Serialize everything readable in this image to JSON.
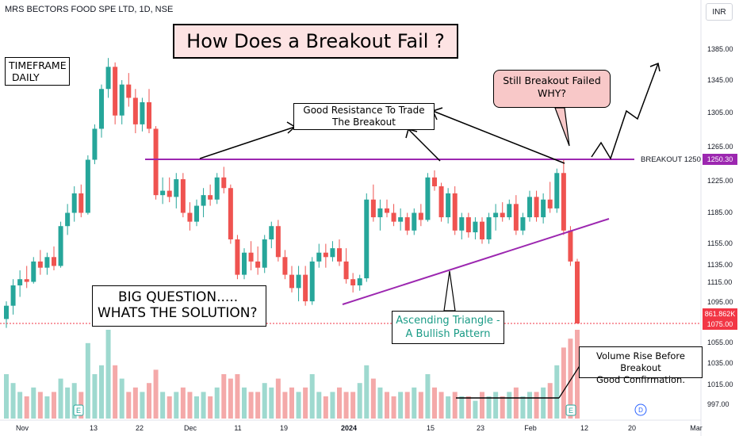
{
  "header": {
    "symbol": "MRS BECTORS FOOD SPE LTD, 1D, NSE",
    "currency": "INR"
  },
  "annotations": {
    "title": "How Does a Breakout Fail ?",
    "timeframe_line1": "TIMEFRAME",
    "timeframe_line2": "DAILY",
    "question_line1": "BIG QUESTION.....",
    "question_line2": "WHATS THE SOLUTION?",
    "resistance_line1": "Good Resistance To Trade",
    "resistance_line2": "The Breakout",
    "still_line1": "Still Breakout Failed",
    "still_line2": "WHY?",
    "ascending_line1": "Ascending Triangle -",
    "ascending_line2": "A Bullish Pattern",
    "volume_line1": "Volume Rise Before Breakout",
    "volume_line2": "Good Confirmation.",
    "breakout_label": "BREAKOUT 1250",
    "earnings_marker": "E",
    "dividend_marker": "D"
  },
  "price_tags": {
    "breakout_value": "1250.30",
    "volume_value": "861.862K",
    "last_value": "1075.00"
  },
  "colors": {
    "up": "#26a69a",
    "down": "#ef5350",
    "up_volume": "#9ed9cf",
    "down_volume": "#f4a9a9",
    "breakout_line": "#9c27b0",
    "last_price": "#f23645"
  },
  "chart_data": {
    "type": "candlestick",
    "y_axis": {
      "ticks": [
        "1385.00",
        "1345.00",
        "1305.00",
        "1265.00",
        "1225.00",
        "1185.00",
        "1155.00",
        "1135.00",
        "1115.00",
        "1095.00",
        "1055.00",
        "1035.00",
        "1015.00",
        "997.00"
      ],
      "range": [
        990,
        1400
      ]
    },
    "x_axis": {
      "ticks": [
        "Nov",
        "13",
        "22",
        "Dec",
        "11",
        "19",
        "2024",
        "15",
        "23",
        "Feb",
        "12",
        "20",
        "Mar"
      ]
    },
    "breakout_level": 1250,
    "candles": [
      {
        "o": 1080,
        "h": 1100,
        "l": 1070,
        "c": 1095,
        "v": 0.5
      },
      {
        "o": 1095,
        "h": 1125,
        "l": 1085,
        "c": 1118,
        "v": 0.4
      },
      {
        "o": 1118,
        "h": 1135,
        "l": 1105,
        "c": 1125,
        "v": 0.3
      },
      {
        "o": 1125,
        "h": 1140,
        "l": 1115,
        "c": 1122,
        "v": 0.25
      },
      {
        "o": 1122,
        "h": 1150,
        "l": 1120,
        "c": 1145,
        "v": 0.35
      },
      {
        "o": 1145,
        "h": 1158,
        "l": 1130,
        "c": 1138,
        "v": 0.3
      },
      {
        "o": 1138,
        "h": 1155,
        "l": 1130,
        "c": 1150,
        "v": 0.25
      },
      {
        "o": 1150,
        "h": 1162,
        "l": 1135,
        "c": 1140,
        "v": 0.3
      },
      {
        "o": 1140,
        "h": 1190,
        "l": 1138,
        "c": 1185,
        "v": 0.45
      },
      {
        "o": 1185,
        "h": 1210,
        "l": 1175,
        "c": 1200,
        "v": 0.35
      },
      {
        "o": 1200,
        "h": 1230,
        "l": 1190,
        "c": 1222,
        "v": 0.4
      },
      {
        "o": 1222,
        "h": 1232,
        "l": 1195,
        "c": 1200,
        "v": 0.3
      },
      {
        "o": 1200,
        "h": 1265,
        "l": 1198,
        "c": 1260,
        "v": 0.85
      },
      {
        "o": 1260,
        "h": 1300,
        "l": 1255,
        "c": 1295,
        "v": 0.5
      },
      {
        "o": 1295,
        "h": 1345,
        "l": 1285,
        "c": 1340,
        "v": 0.6
      },
      {
        "o": 1340,
        "h": 1375,
        "l": 1330,
        "c": 1365,
        "v": 1.0
      },
      {
        "o": 1365,
        "h": 1370,
        "l": 1300,
        "c": 1310,
        "v": 0.6
      },
      {
        "o": 1310,
        "h": 1350,
        "l": 1300,
        "c": 1345,
        "v": 0.45
      },
      {
        "o": 1345,
        "h": 1358,
        "l": 1320,
        "c": 1330,
        "v": 0.3
      },
      {
        "o": 1330,
        "h": 1340,
        "l": 1290,
        "c": 1300,
        "v": 0.35
      },
      {
        "o": 1300,
        "h": 1330,
        "l": 1292,
        "c": 1325,
        "v": 0.3
      },
      {
        "o": 1325,
        "h": 1340,
        "l": 1290,
        "c": 1295,
        "v": 0.4
      },
      {
        "o": 1295,
        "h": 1298,
        "l": 1215,
        "c": 1220,
        "v": 0.55
      },
      {
        "o": 1220,
        "h": 1240,
        "l": 1210,
        "c": 1225,
        "v": 0.3
      },
      {
        "o": 1225,
        "h": 1240,
        "l": 1212,
        "c": 1218,
        "v": 0.25
      },
      {
        "o": 1218,
        "h": 1245,
        "l": 1205,
        "c": 1238,
        "v": 0.3
      },
      {
        "o": 1238,
        "h": 1245,
        "l": 1195,
        "c": 1200,
        "v": 0.35
      },
      {
        "o": 1200,
        "h": 1212,
        "l": 1180,
        "c": 1190,
        "v": 0.3
      },
      {
        "o": 1190,
        "h": 1215,
        "l": 1185,
        "c": 1208,
        "v": 0.25
      },
      {
        "o": 1208,
        "h": 1228,
        "l": 1195,
        "c": 1220,
        "v": 0.3
      },
      {
        "o": 1220,
        "h": 1232,
        "l": 1208,
        "c": 1215,
        "v": 0.25
      },
      {
        "o": 1215,
        "h": 1245,
        "l": 1210,
        "c": 1240,
        "v": 0.35
      },
      {
        "o": 1240,
        "h": 1252,
        "l": 1222,
        "c": 1228,
        "v": 0.5
      },
      {
        "o": 1228,
        "h": 1232,
        "l": 1165,
        "c": 1170,
        "v": 0.45
      },
      {
        "o": 1170,
        "h": 1175,
        "l": 1125,
        "c": 1130,
        "v": 0.5
      },
      {
        "o": 1130,
        "h": 1160,
        "l": 1125,
        "c": 1155,
        "v": 0.35
      },
      {
        "o": 1155,
        "h": 1168,
        "l": 1135,
        "c": 1145,
        "v": 0.3
      },
      {
        "o": 1145,
        "h": 1162,
        "l": 1130,
        "c": 1138,
        "v": 0.3
      },
      {
        "o": 1138,
        "h": 1175,
        "l": 1132,
        "c": 1170,
        "v": 0.4
      },
      {
        "o": 1170,
        "h": 1190,
        "l": 1160,
        "c": 1185,
        "v": 0.35
      },
      {
        "o": 1185,
        "h": 1192,
        "l": 1145,
        "c": 1150,
        "v": 0.45
      },
      {
        "o": 1150,
        "h": 1158,
        "l": 1125,
        "c": 1130,
        "v": 0.3
      },
      {
        "o": 1130,
        "h": 1140,
        "l": 1110,
        "c": 1115,
        "v": 0.35
      },
      {
        "o": 1115,
        "h": 1140,
        "l": 1100,
        "c": 1130,
        "v": 0.3
      },
      {
        "o": 1130,
        "h": 1140,
        "l": 1095,
        "c": 1100,
        "v": 0.35
      },
      {
        "o": 1100,
        "h": 1150,
        "l": 1096,
        "c": 1145,
        "v": 0.5
      },
      {
        "o": 1145,
        "h": 1165,
        "l": 1138,
        "c": 1155,
        "v": 0.3
      },
      {
        "o": 1155,
        "h": 1165,
        "l": 1138,
        "c": 1150,
        "v": 0.25
      },
      {
        "o": 1150,
        "h": 1168,
        "l": 1145,
        "c": 1160,
        "v": 0.3
      },
      {
        "o": 1160,
        "h": 1170,
        "l": 1140,
        "c": 1145,
        "v": 0.35
      },
      {
        "o": 1145,
        "h": 1160,
        "l": 1120,
        "c": 1125,
        "v": 0.3
      },
      {
        "o": 1125,
        "h": 1132,
        "l": 1110,
        "c": 1118,
        "v": 0.3
      },
      {
        "o": 1118,
        "h": 1130,
        "l": 1112,
        "c": 1126,
        "v": 0.4
      },
      {
        "o": 1126,
        "h": 1222,
        "l": 1122,
        "c": 1215,
        "v": 0.6
      },
      {
        "o": 1215,
        "h": 1232,
        "l": 1190,
        "c": 1195,
        "v": 0.45
      },
      {
        "o": 1195,
        "h": 1215,
        "l": 1180,
        "c": 1205,
        "v": 0.35
      },
      {
        "o": 1205,
        "h": 1215,
        "l": 1195,
        "c": 1200,
        "v": 0.3
      },
      {
        "o": 1200,
        "h": 1210,
        "l": 1185,
        "c": 1190,
        "v": 0.25
      },
      {
        "o": 1190,
        "h": 1205,
        "l": 1180,
        "c": 1195,
        "v": 0.3
      },
      {
        "o": 1195,
        "h": 1200,
        "l": 1175,
        "c": 1180,
        "v": 0.3
      },
      {
        "o": 1180,
        "h": 1205,
        "l": 1175,
        "c": 1200,
        "v": 0.35
      },
      {
        "o": 1200,
        "h": 1210,
        "l": 1185,
        "c": 1192,
        "v": 0.3
      },
      {
        "o": 1192,
        "h": 1245,
        "l": 1190,
        "c": 1240,
        "v": 0.5
      },
      {
        "o": 1240,
        "h": 1248,
        "l": 1225,
        "c": 1230,
        "v": 0.35
      },
      {
        "o": 1230,
        "h": 1234,
        "l": 1190,
        "c": 1195,
        "v": 0.3
      },
      {
        "o": 1195,
        "h": 1228,
        "l": 1188,
        "c": 1222,
        "v": 0.25
      },
      {
        "o": 1222,
        "h": 1230,
        "l": 1175,
        "c": 1180,
        "v": 0.3
      },
      {
        "o": 1180,
        "h": 1200,
        "l": 1170,
        "c": 1195,
        "v": 0.25
      },
      {
        "o": 1195,
        "h": 1200,
        "l": 1172,
        "c": 1178,
        "v": 0.25
      },
      {
        "o": 1178,
        "h": 1195,
        "l": 1170,
        "c": 1190,
        "v": 0.2
      },
      {
        "o": 1190,
        "h": 1195,
        "l": 1165,
        "c": 1170,
        "v": 0.3
      },
      {
        "o": 1170,
        "h": 1200,
        "l": 1165,
        "c": 1195,
        "v": 0.25
      },
      {
        "o": 1195,
        "h": 1210,
        "l": 1180,
        "c": 1200,
        "v": 0.3
      },
      {
        "o": 1200,
        "h": 1212,
        "l": 1190,
        "c": 1195,
        "v": 0.25
      },
      {
        "o": 1195,
        "h": 1215,
        "l": 1192,
        "c": 1210,
        "v": 0.3
      },
      {
        "o": 1210,
        "h": 1220,
        "l": 1175,
        "c": 1180,
        "v": 0.35
      },
      {
        "o": 1180,
        "h": 1200,
        "l": 1175,
        "c": 1195,
        "v": 0.25
      },
      {
        "o": 1195,
        "h": 1225,
        "l": 1190,
        "c": 1218,
        "v": 0.3
      },
      {
        "o": 1218,
        "h": 1225,
        "l": 1190,
        "c": 1195,
        "v": 0.3
      },
      {
        "o": 1195,
        "h": 1222,
        "l": 1188,
        "c": 1215,
        "v": 0.35
      },
      {
        "o": 1215,
        "h": 1235,
        "l": 1200,
        "c": 1205,
        "v": 0.4
      },
      {
        "o": 1205,
        "h": 1250,
        "l": 1200,
        "c": 1245,
        "v": 0.6
      },
      {
        "o": 1245,
        "h": 1260,
        "l": 1175,
        "c": 1180,
        "v": 0.8
      },
      {
        "o": 1180,
        "h": 1185,
        "l": 1140,
        "c": 1145,
        "v": 0.9
      },
      {
        "o": 1145,
        "h": 1148,
        "l": 1075,
        "c": 1075,
        "v": 1.0
      }
    ]
  }
}
